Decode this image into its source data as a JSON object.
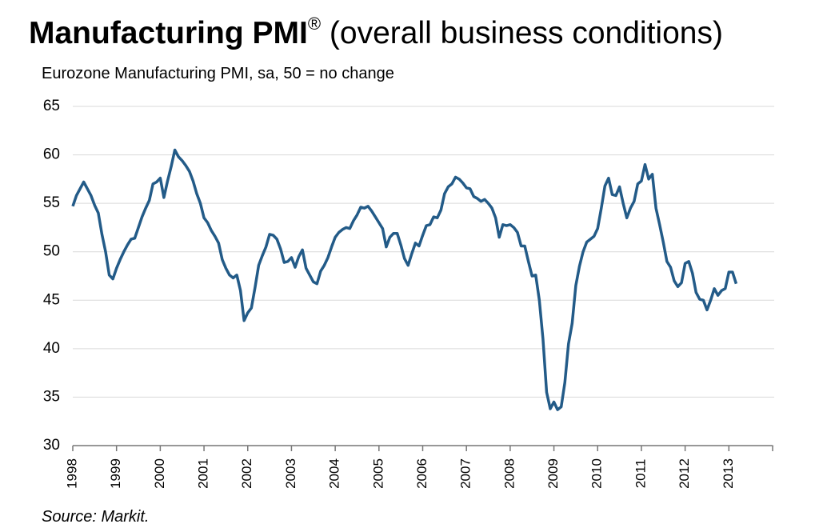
{
  "chart_data": {
    "type": "line",
    "title": {
      "main": "Manufacturing PMI",
      "mark": "®",
      "rest": " (overall business conditions)"
    },
    "subtitle": "Eurozone Manufacturing PMI, sa, 50 = no change",
    "source": "Source: Markit.",
    "color": "#235b88",
    "grid": true,
    "ylim": [
      30,
      65
    ],
    "yticks": [
      30,
      35,
      40,
      45,
      50,
      55,
      60,
      65
    ],
    "categories": [
      "1998",
      null,
      null,
      null,
      null,
      null,
      null,
      null,
      null,
      null,
      null,
      null,
      "1999",
      null,
      null,
      null,
      null,
      null,
      null,
      null,
      null,
      null,
      null,
      null,
      "2000",
      null,
      null,
      null,
      null,
      null,
      null,
      null,
      null,
      null,
      null,
      null,
      "2001",
      null,
      null,
      null,
      null,
      null,
      null,
      null,
      null,
      null,
      null,
      null,
      "2002",
      null,
      null,
      null,
      null,
      null,
      null,
      null,
      null,
      null,
      null,
      null,
      "2003",
      null,
      null,
      null,
      null,
      null,
      null,
      null,
      null,
      null,
      null,
      null,
      "2004",
      null,
      null,
      null,
      null,
      null,
      null,
      null,
      null,
      null,
      null,
      null,
      "2005",
      null,
      null,
      null,
      null,
      null,
      null,
      null,
      null,
      null,
      null,
      null,
      "2006",
      null,
      null,
      null,
      null,
      null,
      null,
      null,
      null,
      null,
      null,
      null,
      "2007",
      null,
      null,
      null,
      null,
      null,
      null,
      null,
      null,
      null,
      null,
      null,
      "2008",
      null,
      null,
      null,
      null,
      null,
      null,
      null,
      null,
      null,
      null,
      null,
      "2009",
      null,
      null,
      null,
      null,
      null,
      null,
      null,
      null,
      null,
      null,
      null,
      "2010",
      null,
      null,
      null,
      null,
      null,
      null,
      null,
      null,
      null,
      null,
      null,
      "2011",
      null,
      null,
      null,
      null,
      null,
      null,
      null,
      null,
      null,
      null,
      null,
      "2012",
      null,
      null,
      null,
      null,
      null,
      null,
      null,
      null,
      null,
      null,
      null,
      "2013",
      null,
      null
    ],
    "values": [
      54.7,
      55.8,
      56.5,
      57.2,
      56.5,
      55.8,
      54.8,
      54.0,
      51.8,
      50.0,
      47.6,
      47.2,
      48.3,
      49.2,
      50.0,
      50.7,
      51.3,
      51.4,
      52.5,
      53.6,
      54.5,
      55.3,
      57.0,
      57.2,
      57.6,
      55.6,
      57.3,
      58.8,
      60.5,
      59.8,
      59.4,
      58.9,
      58.3,
      57.3,
      56.0,
      55.0,
      53.5,
      53.0,
      52.2,
      51.6,
      50.9,
      49.2,
      48.3,
      47.6,
      47.3,
      47.6,
      46.0,
      42.9,
      43.7,
      44.2,
      46.3,
      48.6,
      49.6,
      50.5,
      51.8,
      51.7,
      51.3,
      50.3,
      48.9,
      49.0,
      49.4,
      48.4,
      49.5,
      50.2,
      48.3,
      47.6,
      46.9,
      46.7,
      48.0,
      48.6,
      49.4,
      50.5,
      51.5,
      52.0,
      52.3,
      52.5,
      52.4,
      53.2,
      53.8,
      54.6,
      54.5,
      54.7,
      54.2,
      53.6,
      53.0,
      52.4,
      50.5,
      51.5,
      51.9,
      51.9,
      50.7,
      49.3,
      48.6,
      49.8,
      50.9,
      50.6,
      51.7,
      52.7,
      52.8,
      53.6,
      53.5,
      54.3,
      56.0,
      56.7,
      57.0,
      57.7,
      57.5,
      57.1,
      56.6,
      56.5,
      55.7,
      55.5,
      55.2,
      55.4,
      55.0,
      54.5,
      53.5,
      51.5,
      52.8,
      52.7,
      52.8,
      52.5,
      52.0,
      50.6,
      50.6,
      49.0,
      47.5,
      47.6,
      45.0,
      41.0,
      35.5,
      33.8,
      34.5,
      33.7,
      34.0,
      36.5,
      40.5,
      42.6,
      46.5,
      48.5,
      50.0,
      51.0,
      51.3,
      51.6,
      52.4,
      54.5,
      56.8,
      57.6,
      55.9,
      55.8,
      56.7,
      55.0,
      53.5,
      54.5,
      55.2,
      57.0,
      57.3,
      59.0,
      57.5,
      58.0,
      54.5,
      52.8,
      51.0,
      49.0,
      48.4,
      47.0,
      46.4,
      46.8,
      48.8,
      49.0,
      47.8,
      45.8,
      45.1,
      45.0,
      44.0,
      45.0,
      46.2,
      45.5,
      46.0,
      46.2,
      47.9,
      47.9,
      46.7
    ]
  }
}
